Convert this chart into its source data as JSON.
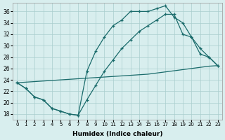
{
  "xlabel": "Humidex (Indice chaleur)",
  "background_color": "#d8eeee",
  "line_color": "#1a6b6b",
  "grid_color": "#aacece",
  "xlim": [
    -0.5,
    23.5
  ],
  "ylim": [
    17.0,
    37.5
  ],
  "yticks": [
    18,
    20,
    22,
    24,
    26,
    28,
    30,
    32,
    34,
    36
  ],
  "xticks": [
    0,
    1,
    2,
    3,
    4,
    5,
    6,
    7,
    8,
    9,
    10,
    11,
    12,
    13,
    14,
    15,
    16,
    17,
    18,
    19,
    20,
    21,
    22,
    23
  ],
  "line1_x": [
    0,
    1,
    2,
    3,
    4,
    5,
    6,
    7,
    8,
    9,
    10,
    11,
    12,
    13,
    14,
    15,
    16,
    17,
    18,
    19,
    20,
    21,
    22,
    23
  ],
  "line1_y": [
    23.5,
    22.5,
    21.0,
    20.5,
    19.0,
    18.5,
    18.0,
    17.8,
    25.5,
    29.0,
    31.5,
    33.5,
    34.5,
    36.0,
    36.0,
    36.0,
    36.5,
    37.0,
    35.0,
    34.0,
    31.5,
    28.5,
    28.0,
    26.5
  ],
  "line2_x": [
    0,
    1,
    2,
    3,
    4,
    5,
    6,
    7,
    8,
    9,
    10,
    11,
    12,
    13,
    14,
    15,
    16,
    17,
    18,
    19,
    20,
    21,
    22,
    23
  ],
  "line2_y": [
    23.5,
    22.5,
    21.0,
    20.5,
    19.0,
    18.5,
    18.0,
    17.8,
    20.5,
    23.0,
    25.5,
    27.5,
    29.5,
    31.0,
    32.5,
    33.5,
    34.5,
    35.5,
    35.5,
    32.0,
    31.5,
    29.5,
    28.0,
    26.5
  ],
  "line3_x": [
    0,
    1,
    2,
    3,
    4,
    5,
    6,
    7,
    8,
    9,
    10,
    11,
    12,
    13,
    14,
    15,
    16,
    17,
    18,
    19,
    20,
    21,
    22,
    23
  ],
  "line3_y": [
    23.5,
    23.6,
    23.7,
    23.8,
    23.9,
    24.0,
    24.1,
    24.2,
    24.3,
    24.4,
    24.5,
    24.6,
    24.7,
    24.8,
    24.9,
    25.0,
    25.2,
    25.4,
    25.6,
    25.8,
    26.0,
    26.2,
    26.4,
    26.5
  ]
}
